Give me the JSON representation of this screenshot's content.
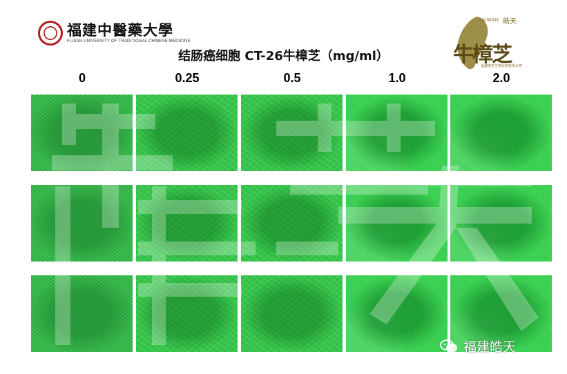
{
  "header": {
    "university_cn": "福建中醫藥大學",
    "university_en": "FUJIAN UNIVERSITY OF TRADITIONAL CHINESE MEDICINE",
    "title": "结肠癌细胞 CT-26牛樟芝（mg/ml）"
  },
  "brand": {
    "en": "TAIWAN",
    "cn_small": "皓天",
    "cn_large": "牛樟芝",
    "tagline": "福建皓天生物科技有限公司",
    "color": "#6b5a1e"
  },
  "concentrations": [
    "0",
    "0.25",
    "0.5",
    "1.0",
    "2.0"
  ],
  "grid": {
    "rows": 3,
    "columns": 5,
    "tile_color": "#35c64a"
  },
  "watermark": {
    "account_name": "福建皓天",
    "icon": "wechat-icon"
  }
}
